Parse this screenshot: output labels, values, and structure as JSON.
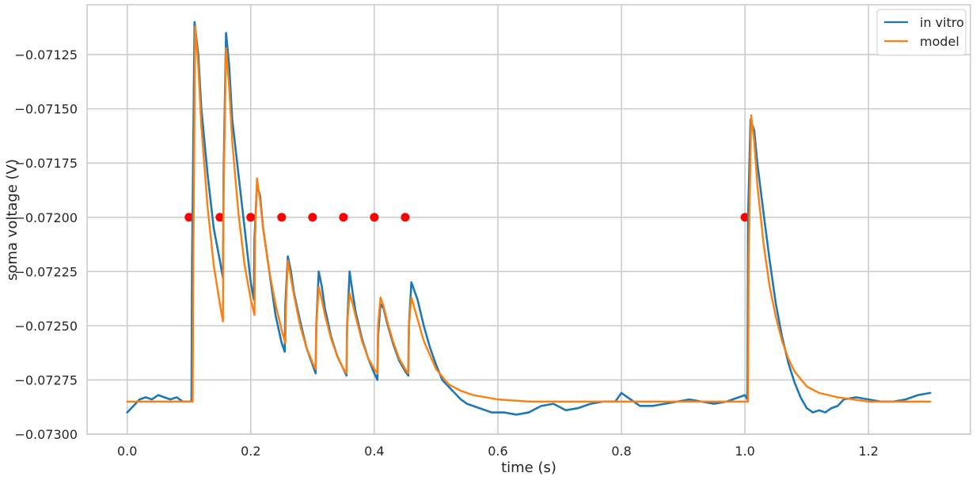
{
  "chart_data": {
    "type": "line",
    "title": "",
    "xlabel": "time (s)",
    "ylabel": "soma voltage (V)",
    "xlim": [
      -0.065,
      1.365
    ],
    "ylim": [
      -0.073,
      -0.07102
    ],
    "grid": true,
    "legend_placement": "top-right",
    "x_ticks": [
      0.0,
      0.2,
      0.4,
      0.6,
      0.8,
      1.0,
      1.2
    ],
    "x_tick_labels": [
      "0.0",
      "0.2",
      "0.4",
      "0.6",
      "0.8",
      "1.0",
      "1.2"
    ],
    "y_ticks": [
      -0.07125,
      -0.0715,
      -0.07175,
      -0.072,
      -0.07225,
      -0.0725,
      -0.07275,
      -0.073
    ],
    "y_tick_labels": [
      "−0.07125",
      "−0.07150",
      "−0.07175",
      "−0.07200",
      "−0.07225",
      "−0.07250",
      "−0.07275",
      "−0.07300"
    ],
    "stimulus_times": [
      0.1,
      0.15,
      0.2,
      0.25,
      0.3,
      0.35,
      0.4,
      0.45,
      1.0
    ],
    "stimulus_value": -0.072,
    "stimulus_color": "#ff0000",
    "series": [
      {
        "name": "in vitro",
        "color": "#1f77b4",
        "x": [
          0.0,
          0.01,
          0.02,
          0.03,
          0.04,
          0.05,
          0.06,
          0.07,
          0.08,
          0.09,
          0.1,
          0.104,
          0.105,
          0.109,
          0.115,
          0.12,
          0.13,
          0.14,
          0.15,
          0.155,
          0.156,
          0.16,
          0.165,
          0.17,
          0.18,
          0.19,
          0.2,
          0.205,
          0.206,
          0.21,
          0.215,
          0.22,
          0.23,
          0.24,
          0.25,
          0.255,
          0.256,
          0.26,
          0.265,
          0.27,
          0.28,
          0.29,
          0.3,
          0.305,
          0.306,
          0.31,
          0.315,
          0.32,
          0.33,
          0.34,
          0.35,
          0.355,
          0.356,
          0.36,
          0.365,
          0.37,
          0.38,
          0.39,
          0.4,
          0.405,
          0.406,
          0.41,
          0.415,
          0.42,
          0.43,
          0.44,
          0.45,
          0.455,
          0.456,
          0.46,
          0.47,
          0.48,
          0.49,
          0.5,
          0.51,
          0.52,
          0.53,
          0.54,
          0.55,
          0.57,
          0.59,
          0.61,
          0.63,
          0.65,
          0.67,
          0.69,
          0.71,
          0.73,
          0.75,
          0.77,
          0.79,
          0.8,
          0.81,
          0.83,
          0.85,
          0.87,
          0.89,
          0.91,
          0.93,
          0.95,
          0.97,
          0.99,
          1.0,
          1.004,
          1.005,
          1.009,
          1.015,
          1.02,
          1.03,
          1.04,
          1.05,
          1.06,
          1.07,
          1.08,
          1.09,
          1.1,
          1.11,
          1.12,
          1.13,
          1.14,
          1.15,
          1.16,
          1.18,
          1.2,
          1.22,
          1.24,
          1.26,
          1.28,
          1.3
        ],
        "y": [
          -0.0729,
          -0.07287,
          -0.07284,
          -0.07283,
          -0.07284,
          -0.07282,
          -0.07283,
          -0.07284,
          -0.07283,
          -0.07285,
          -0.07285,
          -0.07285,
          -0.0722,
          -0.0711,
          -0.07125,
          -0.0715,
          -0.0718,
          -0.07205,
          -0.0722,
          -0.07228,
          -0.0718,
          -0.07115,
          -0.0713,
          -0.07155,
          -0.0718,
          -0.07205,
          -0.0723,
          -0.07238,
          -0.0721,
          -0.07185,
          -0.0719,
          -0.07205,
          -0.07225,
          -0.07245,
          -0.07258,
          -0.07262,
          -0.0724,
          -0.07218,
          -0.07225,
          -0.07235,
          -0.07248,
          -0.0726,
          -0.07268,
          -0.07272,
          -0.0725,
          -0.07225,
          -0.07232,
          -0.07242,
          -0.07255,
          -0.07264,
          -0.0727,
          -0.07273,
          -0.0725,
          -0.07225,
          -0.07235,
          -0.07244,
          -0.07256,
          -0.07265,
          -0.07272,
          -0.07275,
          -0.07255,
          -0.0724,
          -0.07242,
          -0.07248,
          -0.07258,
          -0.07266,
          -0.07271,
          -0.07273,
          -0.0725,
          -0.0723,
          -0.07238,
          -0.0725,
          -0.0726,
          -0.07268,
          -0.07275,
          -0.07278,
          -0.07281,
          -0.07284,
          -0.07286,
          -0.07288,
          -0.0729,
          -0.0729,
          -0.07291,
          -0.0729,
          -0.07287,
          -0.07286,
          -0.07289,
          -0.07288,
          -0.07286,
          -0.07285,
          -0.07285,
          -0.07281,
          -0.07283,
          -0.07287,
          -0.07287,
          -0.07286,
          -0.07285,
          -0.07284,
          -0.07285,
          -0.07286,
          -0.07285,
          -0.07283,
          -0.07282,
          -0.07284,
          -0.072,
          -0.07155,
          -0.0716,
          -0.07175,
          -0.07198,
          -0.0722,
          -0.0724,
          -0.07255,
          -0.07267,
          -0.07276,
          -0.07283,
          -0.07288,
          -0.0729,
          -0.07289,
          -0.0729,
          -0.07288,
          -0.07287,
          -0.07284,
          -0.07283,
          -0.07284,
          -0.07285,
          -0.07285,
          -0.07284,
          -0.07282,
          -0.07281
        ]
      },
      {
        "name": "model",
        "color": "#ff7f0e",
        "x": [
          0.0,
          0.05,
          0.1,
          0.106,
          0.107,
          0.11,
          0.115,
          0.12,
          0.13,
          0.14,
          0.15,
          0.155,
          0.156,
          0.16,
          0.165,
          0.17,
          0.18,
          0.19,
          0.2,
          0.206,
          0.207,
          0.21,
          0.215,
          0.22,
          0.23,
          0.24,
          0.25,
          0.256,
          0.257,
          0.26,
          0.265,
          0.27,
          0.28,
          0.29,
          0.3,
          0.305,
          0.306,
          0.31,
          0.315,
          0.32,
          0.33,
          0.34,
          0.35,
          0.355,
          0.356,
          0.36,
          0.365,
          0.37,
          0.38,
          0.39,
          0.4,
          0.405,
          0.406,
          0.41,
          0.415,
          0.42,
          0.43,
          0.44,
          0.45,
          0.455,
          0.456,
          0.46,
          0.47,
          0.48,
          0.5,
          0.52,
          0.54,
          0.56,
          0.58,
          0.6,
          0.65,
          0.7,
          0.8,
          0.9,
          1.0,
          1.005,
          1.006,
          1.01,
          1.015,
          1.02,
          1.03,
          1.04,
          1.05,
          1.06,
          1.07,
          1.08,
          1.1,
          1.12,
          1.15,
          1.2,
          1.25,
          1.3
        ],
        "y": [
          -0.07285,
          -0.07285,
          -0.07285,
          -0.07285,
          -0.0722,
          -0.07112,
          -0.0713,
          -0.07158,
          -0.07195,
          -0.07222,
          -0.0724,
          -0.07248,
          -0.0719,
          -0.07122,
          -0.0714,
          -0.07165,
          -0.07198,
          -0.07222,
          -0.07238,
          -0.07245,
          -0.0721,
          -0.07182,
          -0.07192,
          -0.07205,
          -0.07225,
          -0.0724,
          -0.07252,
          -0.07258,
          -0.0724,
          -0.0722,
          -0.07228,
          -0.07236,
          -0.0725,
          -0.0726,
          -0.07267,
          -0.0727,
          -0.0725,
          -0.07232,
          -0.07238,
          -0.07245,
          -0.07256,
          -0.07264,
          -0.0727,
          -0.07272,
          -0.0725,
          -0.07235,
          -0.0724,
          -0.07246,
          -0.07257,
          -0.07265,
          -0.0727,
          -0.07272,
          -0.0725,
          -0.07237,
          -0.07241,
          -0.07247,
          -0.07257,
          -0.07265,
          -0.0727,
          -0.07272,
          -0.0725,
          -0.07237,
          -0.07247,
          -0.07257,
          -0.0727,
          -0.07277,
          -0.0728,
          -0.07282,
          -0.07283,
          -0.07284,
          -0.07285,
          -0.07285,
          -0.07285,
          -0.07285,
          -0.07285,
          -0.07285,
          -0.0722,
          -0.07153,
          -0.07165,
          -0.07185,
          -0.07212,
          -0.07232,
          -0.07246,
          -0.07257,
          -0.07265,
          -0.07271,
          -0.07278,
          -0.07281,
          -0.07283,
          -0.07285,
          -0.07285,
          -0.07285
        ]
      }
    ]
  }
}
